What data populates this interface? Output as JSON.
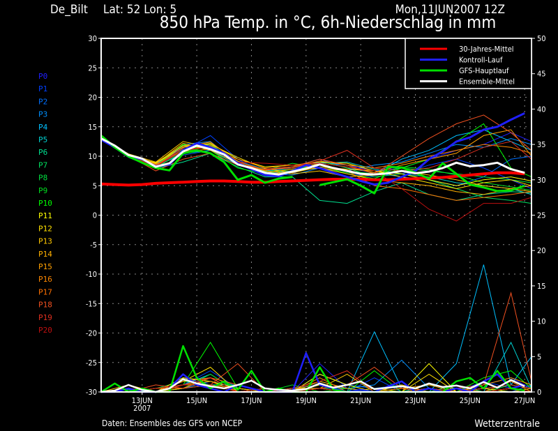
{
  "header": {
    "location": "De_Bilt",
    "coords": "Lat: 52 Lon: 5",
    "run": "Mon,11JUN2007 12Z",
    "title": "850 hPa Temp. in °C, 6h-Niederschlag in mm"
  },
  "footer": {
    "source": "Daten: Ensembles des GFS von NCEP",
    "brand": "Wetterzentrale"
  },
  "chart_data": {
    "type": "line",
    "title": "850 hPa Temp. in °C, 6h-Niederschlag in mm",
    "x_range": [
      "2007-06-11T12",
      "2007-06-27T06"
    ],
    "x_ticks": [
      {
        "date": "2007-06-13T00",
        "label": "13JUN",
        "sublabel": "2007"
      },
      {
        "date": "2007-06-15T00",
        "label": "15JUN"
      },
      {
        "date": "2007-06-17T00",
        "label": "17JUN"
      },
      {
        "date": "2007-06-19T00",
        "label": "19JUN"
      },
      {
        "date": "2007-06-21T00",
        "label": "21JUN"
      },
      {
        "date": "2007-06-23T00",
        "label": "23JUN"
      },
      {
        "date": "2007-06-25T00",
        "label": "25JUN"
      },
      {
        "date": "2007-06-27T00",
        "label": "27JUN"
      }
    ],
    "y_left": {
      "unit": "°C",
      "range": [
        -30,
        30
      ],
      "ticks": [
        30,
        25,
        20,
        15,
        10,
        5,
        0,
        -5,
        -10,
        -15,
        -20,
        -25,
        -30
      ]
    },
    "y_right": {
      "unit": "mm",
      "range": [
        0,
        50
      ],
      "ticks": [
        50,
        45,
        40,
        35,
        30,
        25,
        20,
        15,
        10,
        5,
        0
      ]
    },
    "grid": true,
    "legend_placement": "top-right",
    "times_12h": [
      "2007-06-11T12",
      "2007-06-12T00",
      "2007-06-12T12",
      "2007-06-13T00",
      "2007-06-13T12",
      "2007-06-14T00",
      "2007-06-14T12",
      "2007-06-15T00",
      "2007-06-15T12",
      "2007-06-16T00",
      "2007-06-16T12",
      "2007-06-17T00",
      "2007-06-17T12",
      "2007-06-18T00",
      "2007-06-18T12",
      "2007-06-19T00",
      "2007-06-19T12",
      "2007-06-20T00",
      "2007-06-20T12",
      "2007-06-21T00",
      "2007-06-21T12",
      "2007-06-22T00",
      "2007-06-22T12",
      "2007-06-23T00",
      "2007-06-23T12",
      "2007-06-24T00",
      "2007-06-24T12",
      "2007-06-25T00",
      "2007-06-25T12",
      "2007-06-26T00",
      "2007-06-26T12",
      "2007-06-27T00"
    ],
    "times_members": [
      "2007-06-11T12",
      "2007-06-12T12",
      "2007-06-13T12",
      "2007-06-14T12",
      "2007-06-15T12",
      "2007-06-16T12",
      "2007-06-17T12",
      "2007-06-18T12",
      "2007-06-19T12",
      "2007-06-20T12",
      "2007-06-21T12",
      "2007-06-22T12",
      "2007-06-23T12",
      "2007-06-24T12",
      "2007-06-25T12",
      "2007-06-26T12",
      "2007-06-27T06"
    ],
    "main_series": [
      {
        "name": "30-Jahres-Mittel",
        "color": "#ff0000",
        "temp": [
          5.3,
          5.2,
          5.1,
          5.2,
          5.4,
          5.5,
          5.6,
          5.7,
          5.8,
          5.8,
          5.7,
          5.6,
          5.6,
          5.7,
          5.8,
          5.9,
          6.0,
          6.1,
          6.1,
          6.1,
          6.0,
          6.0,
          6.1,
          6.2,
          6.3,
          6.4,
          6.6,
          6.8,
          7.0,
          7.2,
          7.2,
          7.0
        ],
        "precip": null
      },
      {
        "name": "Kontroll-Lauf",
        "color": "#2020ff",
        "temp": [
          12.8,
          11.5,
          10.0,
          9.5,
          8.3,
          8.6,
          11.0,
          12.2,
          11.5,
          10.5,
          8.8,
          7.8,
          6.8,
          6.6,
          7.5,
          8.5,
          8.0,
          7.2,
          6.5,
          5.8,
          5.2,
          5.5,
          6.5,
          7.5,
          9.5,
          10.8,
          12.5,
          13.2,
          14.5,
          15.0,
          16.2,
          17.3
        ],
        "precip": [
          0,
          0,
          0.5,
          0,
          0,
          0.5,
          2.5,
          1.0,
          0.5,
          0,
          1.0,
          0.5,
          0,
          0,
          0,
          5.5,
          1.0,
          0.5,
          0,
          0.3,
          0,
          0.8,
          1.5,
          0,
          0.5,
          0,
          0.5,
          0,
          1.5,
          2.5,
          0.5,
          1.0
        ]
      },
      {
        "name": "GFS-Hauptlauf",
        "color": "#00e000",
        "temp": [
          13.5,
          11.5,
          10.0,
          8.9,
          8.0,
          7.6,
          10.5,
          11.0,
          10.5,
          9.0,
          6.0,
          6.8,
          5.5,
          6.2,
          6.5,
          null,
          5.1,
          5.6,
          6.1,
          5.0,
          3.7,
          8.2,
          8.1,
          7.2,
          6.2,
          8.8,
          7.0,
          5.2,
          4.7,
          4.1,
          4.2,
          5.0
        ],
        "precip": [
          0,
          1.2,
          0,
          0.5,
          0,
          0,
          6.5,
          2.0,
          0.5,
          1.5,
          0.3,
          3.0,
          0,
          0.5,
          0,
          0,
          3.5,
          0.3,
          0,
          0,
          0,
          0,
          0,
          0,
          0,
          0,
          1.5,
          2.0,
          0.5,
          3.0,
          0.5,
          0.2
        ]
      },
      {
        "name": "Ensemble-Mittel",
        "color": "#ffffff",
        "temp": [
          13.0,
          11.8,
          10.2,
          9.6,
          8.2,
          8.8,
          10.8,
          11.8,
          11.2,
          10.3,
          8.6,
          8.0,
          7.2,
          6.9,
          7.4,
          7.9,
          8.6,
          8.0,
          7.5,
          7.0,
          6.9,
          7.1,
          7.5,
          7.1,
          7.4,
          8.0,
          8.9,
          8.3,
          8.5,
          8.9,
          7.8,
          7.2
        ],
        "precip": [
          0,
          0.2,
          1.0,
          0.3,
          0,
          0.5,
          1.8,
          1.2,
          0.8,
          0.5,
          1.0,
          1.6,
          0.5,
          0.3,
          0.2,
          0.4,
          1.2,
          0.6,
          1.0,
          1.5,
          0.4,
          0.6,
          0.8,
          0.5,
          1.2,
          0.7,
          0.9,
          0.5,
          1.4,
          0.6,
          1.7,
          0.8
        ]
      }
    ],
    "members": [
      {
        "name": "P0",
        "color": "#2020ff",
        "temp": [
          13.0,
          10.0,
          8.4,
          11.5,
          12.0,
          9.0,
          7.5,
          7.0,
          9.0,
          8.5,
          7.5,
          8.0,
          9.5,
          11.0,
          12.0,
          14.0,
          12.5
        ],
        "precip": [
          0,
          0.5,
          0,
          2.0,
          1.0,
          0,
          0,
          0,
          4.0,
          0.5,
          0,
          0,
          0,
          0.5,
          1.0,
          2.0,
          0.5
        ]
      },
      {
        "name": "P1",
        "color": "#0040ff",
        "temp": [
          13.0,
          10.3,
          8.0,
          11.0,
          13.5,
          9.5,
          7.0,
          7.5,
          8.0,
          7.0,
          6.5,
          7.0,
          8.5,
          9.5,
          8.0,
          6.0,
          4.5
        ],
        "precip": [
          0,
          0,
          0.5,
          1.0,
          3.0,
          0.5,
          0,
          0.5,
          1.0,
          0,
          2.0,
          0,
          0.5,
          0,
          1.5,
          0.5,
          0
        ]
      },
      {
        "name": "P2",
        "color": "#0070ff",
        "temp": [
          13.1,
          10.1,
          8.5,
          10.2,
          11.0,
          9.2,
          7.8,
          8.2,
          9.5,
          8.0,
          7.2,
          6.5,
          6.0,
          5.0,
          6.5,
          9.5,
          10.0
        ],
        "precip": [
          0,
          0,
          0,
          1.5,
          2.0,
          0,
          0.5,
          0,
          2.5,
          1.0,
          0.5,
          1.0,
          0,
          0,
          0.5,
          0,
          1.0
        ]
      },
      {
        "name": "P3",
        "color": "#0090ff",
        "temp": [
          12.9,
          10.4,
          8.1,
          12.0,
          12.5,
          8.8,
          7.0,
          6.8,
          8.0,
          7.5,
          8.5,
          9.0,
          10.5,
          12.0,
          11.5,
          13.0,
          12.0
        ],
        "precip": [
          0,
          0.3,
          0,
          0.5,
          1.5,
          0.5,
          0,
          0,
          1.0,
          0.5,
          1.0,
          4.5,
          0.5,
          0,
          0.5,
          1.0,
          0.5
        ]
      },
      {
        "name": "P4",
        "color": "#00c0ff",
        "temp": [
          13.0,
          10.0,
          8.6,
          11.8,
          11.5,
          9.0,
          7.5,
          8.0,
          9.0,
          8.5,
          7.0,
          9.5,
          11.0,
          13.5,
          14.5,
          12.5,
          11.0
        ],
        "precip": [
          0,
          0,
          0.5,
          1.0,
          2.5,
          0,
          0,
          0.5,
          0.5,
          0,
          8.5,
          0.5,
          0,
          4.0,
          18.0,
          1.0,
          5.0
        ]
      },
      {
        "name": "P5",
        "color": "#00d0d0",
        "temp": [
          13.0,
          10.2,
          8.2,
          10.5,
          11.0,
          8.5,
          7.2,
          7.5,
          8.8,
          9.0,
          7.8,
          7.0,
          6.5,
          5.5,
          5.0,
          4.5,
          3.5
        ],
        "precip": [
          0,
          0.5,
          0,
          0.5,
          1.0,
          1.0,
          0,
          0,
          1.5,
          0.5,
          0,
          0,
          1.0,
          0.5,
          0,
          7.0,
          0.5
        ]
      },
      {
        "name": "P6",
        "color": "#00e090",
        "temp": [
          12.9,
          9.8,
          7.9,
          9.0,
          10.5,
          8.2,
          6.5,
          6.5,
          2.5,
          2.0,
          4.0,
          5.5,
          3.5,
          2.5,
          3.5,
          4.0,
          3.8
        ],
        "precip": [
          0,
          0,
          0,
          0.5,
          2.0,
          0,
          0.5,
          0,
          0.5,
          0,
          0.5,
          0,
          0,
          1.0,
          0,
          0.5,
          0
        ]
      },
      {
        "name": "P7",
        "color": "#00e060",
        "temp": [
          13.0,
          10.1,
          8.3,
          11.0,
          12.0,
          9.0,
          7.8,
          8.0,
          9.2,
          8.0,
          6.5,
          7.0,
          6.0,
          4.5,
          3.0,
          2.5,
          2.0
        ],
        "precip": [
          0,
          0.3,
          0,
          1.0,
          1.5,
          0.5,
          0,
          0,
          1.0,
          0,
          0,
          0.5,
          0,
          0,
          0.5,
          0,
          0
        ]
      },
      {
        "name": "P8",
        "color": "#00e040",
        "temp": [
          13.0,
          10.0,
          8.5,
          11.2,
          11.8,
          8.7,
          7.4,
          7.8,
          8.6,
          7.5,
          7.0,
          8.0,
          7.5,
          7.0,
          6.5,
          6.0,
          5.5
        ],
        "precip": [
          0,
          0,
          0.5,
          1.5,
          1.0,
          0,
          0,
          0.5,
          0.5,
          0.5,
          0,
          0,
          0.5,
          0,
          0,
          1.0,
          0.5
        ]
      },
      {
        "name": "P9",
        "color": "#00e020",
        "temp": [
          13.1,
          10.2,
          8.0,
          10.8,
          11.6,
          9.1,
          7.6,
          8.8,
          8.0,
          7.2,
          6.8,
          8.2,
          7.8,
          6.8,
          5.5,
          4.8,
          4.2
        ],
        "precip": [
          0,
          0,
          0,
          0.5,
          2.5,
          0,
          0,
          1.0,
          0,
          0.5,
          0,
          0,
          0,
          0.5,
          0,
          0,
          0
        ]
      },
      {
        "name": "P10",
        "color": "#00ff00",
        "temp": [
          13.0,
          10.3,
          8.4,
          12.0,
          11.0,
          8.0,
          7.0,
          7.8,
          8.5,
          7.0,
          6.2,
          8.0,
          9.5,
          12.5,
          15.5,
          8.0,
          6.5
        ],
        "precip": [
          0,
          0,
          0.5,
          1.0,
          7.0,
          0.5,
          0,
          0,
          1.0,
          0,
          3.0,
          0,
          0.5,
          0,
          2.0,
          3.0,
          0.5
        ]
      },
      {
        "name": "P11",
        "color": "#ffff00",
        "temp": [
          12.9,
          10.0,
          8.8,
          11.5,
          12.2,
          9.5,
          8.2,
          8.5,
          9.0,
          8.8,
          7.5,
          7.0,
          6.0,
          5.0,
          6.0,
          6.5,
          5.8
        ],
        "precip": [
          0,
          0,
          0,
          2.0,
          1.5,
          0.5,
          0,
          0,
          2.5,
          1.0,
          0,
          0,
          4.0,
          0,
          0.5,
          0,
          0
        ]
      },
      {
        "name": "P12",
        "color": "#ffe000",
        "temp": [
          13.0,
          10.1,
          8.9,
          11.8,
          12.0,
          9.8,
          7.9,
          7.2,
          8.2,
          7.8,
          7.5,
          6.5,
          5.5,
          4.5,
          5.5,
          6.0,
          5.0
        ],
        "precip": [
          0,
          0.5,
          0,
          1.5,
          3.5,
          0,
          0,
          0,
          1.0,
          0,
          0.5,
          0,
          2.5,
          0,
          0,
          0.5,
          0
        ]
      },
      {
        "name": "P13",
        "color": "#ffc800",
        "temp": [
          13.0,
          10.4,
          9.0,
          12.5,
          11.5,
          9.0,
          7.5,
          7.0,
          7.5,
          6.5,
          6.8,
          7.5,
          6.8,
          6.0,
          5.0,
          4.5,
          4.0
        ],
        "precip": [
          0,
          1.0,
          0,
          0.5,
          2.0,
          0,
          0.5,
          0,
          0.5,
          2.5,
          0,
          1.0,
          0,
          0,
          0,
          0.5,
          0
        ]
      },
      {
        "name": "P14",
        "color": "#ffb000",
        "temp": [
          13.0,
          10.2,
          8.7,
          12.2,
          11.0,
          8.8,
          6.8,
          7.5,
          8.0,
          7.0,
          6.0,
          5.5,
          5.0,
          4.0,
          3.5,
          4.5,
          5.0
        ],
        "precip": [
          0,
          0,
          0.5,
          1.0,
          1.0,
          0.5,
          0,
          0.5,
          0.5,
          0,
          0,
          0.5,
          1.0,
          0,
          0,
          0,
          0.5
        ]
      },
      {
        "name": "P15",
        "color": "#ffa000",
        "temp": [
          12.9,
          10.3,
          8.5,
          11.0,
          11.8,
          9.2,
          7.2,
          7.8,
          8.8,
          8.2,
          7.2,
          8.5,
          9.5,
          10.5,
          13.5,
          14.5,
          10.0
        ],
        "precip": [
          0,
          0,
          0,
          1.5,
          2.0,
          0,
          0,
          0,
          1.5,
          0.5,
          0,
          0,
          0.5,
          0,
          1.0,
          2.0,
          1.0
        ]
      },
      {
        "name": "P16",
        "color": "#ff8800",
        "temp": [
          13.0,
          10.0,
          8.4,
          11.6,
          12.4,
          9.0,
          7.6,
          8.2,
          9.2,
          8.5,
          8.0,
          8.8,
          10.0,
          11.0,
          12.0,
          11.5,
          10.5
        ],
        "precip": [
          0,
          0.5,
          0,
          1.0,
          1.5,
          0,
          0.5,
          0,
          2.0,
          0,
          0,
          0.5,
          0,
          0.5,
          0,
          1.5,
          0
        ]
      },
      {
        "name": "P17",
        "color": "#ff7000",
        "temp": [
          13.0,
          10.2,
          8.6,
          10.8,
          11.2,
          9.5,
          8.0,
          8.5,
          8.0,
          7.5,
          5.0,
          4.5,
          3.5,
          2.5,
          3.0,
          3.5,
          4.0
        ],
        "precip": [
          0,
          0,
          0.5,
          0.5,
          2.0,
          1.0,
          0,
          0,
          0.5,
          0,
          0,
          0,
          0,
          0,
          0,
          0.5,
          0
        ]
      },
      {
        "name": "P18",
        "color": "#f05020",
        "temp": [
          13.1,
          10.1,
          7.5,
          9.5,
          10.5,
          8.5,
          7.8,
          8.2,
          9.5,
          8.5,
          7.0,
          10.0,
          13.0,
          15.5,
          17.0,
          14.0,
          11.0
        ],
        "precip": [
          0,
          0,
          1.0,
          0.5,
          1.0,
          4.0,
          0,
          0,
          0.5,
          1.0,
          3.5,
          0.5,
          0,
          0.5,
          1.0,
          14.0,
          1.5
        ]
      },
      {
        "name": "P19",
        "color": "#e03020",
        "temp": [
          13.0,
          10.0,
          8.3,
          11.3,
          11.4,
          9.0,
          7.7,
          8.0,
          9.2,
          11.0,
          8.0,
          7.5,
          8.0,
          9.5,
          11.5,
          12.5,
          9.5
        ],
        "precip": [
          0,
          0.5,
          0,
          1.0,
          2.0,
          0,
          0,
          0.5,
          1.5,
          3.0,
          0,
          0,
          0.5,
          0,
          0.5,
          1.0,
          0.5
        ]
      },
      {
        "name": "P20",
        "color": "#c01010",
        "temp": [
          13.0,
          10.1,
          8.2,
          11.0,
          11.5,
          9.0,
          8.8,
          8.5,
          8.8,
          8.2,
          7.5,
          4.5,
          1.0,
          -1.0,
          2.0,
          2.0,
          3.0
        ],
        "precip": [
          0,
          0,
          0.5,
          1.0,
          1.0,
          0,
          0.5,
          0,
          0.5,
          0,
          0,
          0,
          0,
          0,
          0,
          0.5,
          0
        ]
      }
    ]
  }
}
